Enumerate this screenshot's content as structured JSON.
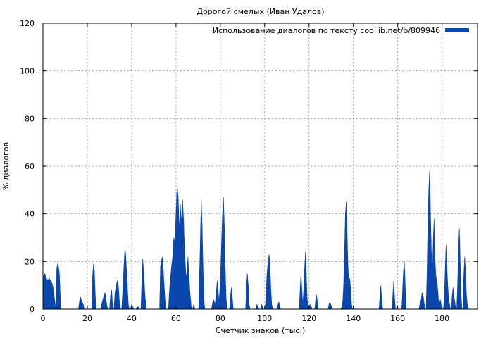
{
  "chart_data": {
    "type": "area",
    "title": "Дорогой смелых (Иван Удалов)",
    "xlabel": "Счетчик знаков (тыс.)",
    "ylabel": "% диалогов",
    "xlim": [
      0,
      196
    ],
    "ylim": [
      0,
      120
    ],
    "xticks": [
      0,
      20,
      40,
      60,
      80,
      100,
      120,
      140,
      160,
      180
    ],
    "yticks": [
      0,
      20,
      40,
      60,
      80,
      100,
      120
    ],
    "grid": true,
    "legend_position": "top-right",
    "colors": {
      "series": "#0a47ad",
      "grid": "#a0a0a0",
      "axis": "#000000"
    },
    "series": [
      {
        "name": "Использование диалогов по тексту coollib.net/b/809946",
        "points": [
          [
            0,
            0
          ],
          [
            0.3,
            14
          ],
          [
            0.8,
            15
          ],
          [
            1.5,
            13
          ],
          [
            2.2,
            12
          ],
          [
            2.8,
            13
          ],
          [
            3.4,
            12
          ],
          [
            4,
            11
          ],
          [
            4.6,
            9
          ],
          [
            5,
            6
          ],
          [
            5.4,
            3
          ],
          [
            5.8,
            0
          ],
          [
            6,
            0
          ],
          [
            6.2,
            17
          ],
          [
            6.6,
            19
          ],
          [
            7,
            18
          ],
          [
            7.4,
            15
          ],
          [
            7.8,
            6
          ],
          [
            8,
            0
          ],
          [
            16,
            0
          ],
          [
            16.6,
            4
          ],
          [
            17,
            5
          ],
          [
            17.6,
            3
          ],
          [
            18.2,
            2
          ],
          [
            18.6,
            0
          ],
          [
            22,
            0
          ],
          [
            22.4,
            14
          ],
          [
            22.8,
            19
          ],
          [
            23.2,
            16
          ],
          [
            23.6,
            6
          ],
          [
            24,
            0
          ],
          [
            26,
            0
          ],
          [
            27,
            4
          ],
          [
            28,
            7
          ],
          [
            28.6,
            3
          ],
          [
            29.2,
            0
          ],
          [
            30,
            0
          ],
          [
            30.5,
            6
          ],
          [
            31,
            8
          ],
          [
            31.5,
            0
          ],
          [
            32,
            0
          ],
          [
            32.5,
            7
          ],
          [
            33.5,
            12
          ],
          [
            34,
            10
          ],
          [
            34.5,
            3
          ],
          [
            35,
            0
          ],
          [
            35.5,
            0
          ],
          [
            36,
            8
          ],
          [
            36.5,
            18
          ],
          [
            37,
            26
          ],
          [
            37.4,
            22
          ],
          [
            38,
            11
          ],
          [
            38.5,
            2
          ],
          [
            39,
            0
          ],
          [
            39.5,
            0
          ],
          [
            40,
            2
          ],
          [
            40.5,
            1
          ],
          [
            41,
            0
          ],
          [
            42,
            0
          ],
          [
            42.5,
            1
          ],
          [
            43,
            1
          ],
          [
            43.5,
            0
          ],
          [
            44.2,
            0
          ],
          [
            44.6,
            12
          ],
          [
            45,
            21
          ],
          [
            45.4,
            16
          ],
          [
            46,
            6
          ],
          [
            46.6,
            0
          ],
          [
            52.6,
            0
          ],
          [
            53,
            18
          ],
          [
            53.6,
            21
          ],
          [
            54,
            22
          ],
          [
            54.4,
            14
          ],
          [
            55,
            5
          ],
          [
            55.4,
            0
          ],
          [
            56.6,
            0
          ],
          [
            57,
            7
          ],
          [
            57.6,
            14
          ],
          [
            58,
            18
          ],
          [
            58.5,
            22
          ],
          [
            59,
            30
          ],
          [
            59.5,
            28
          ],
          [
            60,
            40
          ],
          [
            60.5,
            52
          ],
          [
            61,
            47
          ],
          [
            61.5,
            33
          ],
          [
            62,
            44
          ],
          [
            62.4,
            36
          ],
          [
            63,
            46
          ],
          [
            63.4,
            38
          ],
          [
            64,
            22
          ],
          [
            64.6,
            13
          ],
          [
            65,
            16
          ],
          [
            65.4,
            22
          ],
          [
            65.8,
            14
          ],
          [
            66.4,
            6
          ],
          [
            67,
            0
          ],
          [
            67.5,
            0
          ],
          [
            68,
            2
          ],
          [
            68.5,
            0
          ],
          [
            70.2,
            0
          ],
          [
            70.6,
            14
          ],
          [
            71,
            30
          ],
          [
            71.4,
            46
          ],
          [
            71.8,
            35
          ],
          [
            72.2,
            18
          ],
          [
            72.6,
            4
          ],
          [
            73,
            0
          ],
          [
            76,
            0
          ],
          [
            76.6,
            3
          ],
          [
            77,
            4
          ],
          [
            77.6,
            2
          ],
          [
            78,
            5
          ],
          [
            78.6,
            12
          ],
          [
            79,
            8
          ],
          [
            79.4,
            3
          ],
          [
            80,
            12
          ],
          [
            80.6,
            30
          ],
          [
            81,
            40
          ],
          [
            81.4,
            47
          ],
          [
            81.8,
            36
          ],
          [
            82.2,
            18
          ],
          [
            82.6,
            5
          ],
          [
            83,
            0
          ],
          [
            84.2,
            0
          ],
          [
            84.6,
            6
          ],
          [
            85,
            9
          ],
          [
            85.4,
            5
          ],
          [
            85.8,
            0
          ],
          [
            91.4,
            0
          ],
          [
            91.8,
            10
          ],
          [
            92.2,
            15
          ],
          [
            92.6,
            10
          ],
          [
            93,
            2
          ],
          [
            93.4,
            0
          ],
          [
            96,
            0
          ],
          [
            96.5,
            2
          ],
          [
            97,
            1
          ],
          [
            97.5,
            0
          ],
          [
            98.2,
            0
          ],
          [
            98.6,
            2
          ],
          [
            99,
            1
          ],
          [
            99.4,
            0
          ],
          [
            100.2,
            0
          ],
          [
            100.6,
            6
          ],
          [
            101,
            14
          ],
          [
            101.5,
            20
          ],
          [
            102,
            23
          ],
          [
            102.4,
            18
          ],
          [
            102.8,
            8
          ],
          [
            103.2,
            2
          ],
          [
            103.6,
            0
          ],
          [
            105.6,
            0
          ],
          [
            106,
            2
          ],
          [
            106.4,
            3
          ],
          [
            106.8,
            1
          ],
          [
            107.2,
            0
          ],
          [
            115.6,
            0
          ],
          [
            116,
            9
          ],
          [
            116.4,
            15
          ],
          [
            116.8,
            8
          ],
          [
            117.2,
            2
          ],
          [
            117.6,
            8
          ],
          [
            118,
            17
          ],
          [
            118.4,
            24
          ],
          [
            118.8,
            14
          ],
          [
            119.2,
            4
          ],
          [
            119.6,
            2
          ],
          [
            120,
            1
          ],
          [
            120.4,
            2
          ],
          [
            121,
            1
          ],
          [
            121.4,
            0
          ],
          [
            122.6,
            0
          ],
          [
            123,
            4
          ],
          [
            123.4,
            6
          ],
          [
            123.8,
            3
          ],
          [
            124.2,
            0
          ],
          [
            128.6,
            0
          ],
          [
            129,
            2
          ],
          [
            129.4,
            3
          ],
          [
            129.8,
            2
          ],
          [
            130.2,
            1
          ],
          [
            130.6,
            0
          ],
          [
            134.4,
            0
          ],
          [
            134.8,
            1
          ],
          [
            135.2,
            3
          ],
          [
            135.6,
            10
          ],
          [
            136,
            24
          ],
          [
            136.4,
            40
          ],
          [
            136.8,
            45
          ],
          [
            137.2,
            31
          ],
          [
            137.6,
            18
          ],
          [
            138,
            10
          ],
          [
            138.4,
            13
          ],
          [
            138.8,
            8
          ],
          [
            139.2,
            2
          ],
          [
            139.6,
            0
          ],
          [
            151.6,
            0
          ],
          [
            152,
            6
          ],
          [
            152.4,
            10
          ],
          [
            152.8,
            4
          ],
          [
            153.2,
            0
          ],
          [
            157.4,
            0
          ],
          [
            157.8,
            6
          ],
          [
            158.2,
            12
          ],
          [
            158.6,
            5
          ],
          [
            159,
            0
          ],
          [
            161.8,
            0
          ],
          [
            162.2,
            8
          ],
          [
            162.6,
            16
          ],
          [
            163,
            20
          ],
          [
            163.4,
            10
          ],
          [
            163.8,
            0
          ],
          [
            169.6,
            0
          ],
          [
            170,
            2
          ],
          [
            170.6,
            4
          ],
          [
            171,
            7
          ],
          [
            171.6,
            5
          ],
          [
            172,
            2
          ],
          [
            172.4,
            0
          ],
          [
            172.8,
            0
          ],
          [
            173.2,
            14
          ],
          [
            173.6,
            35
          ],
          [
            174,
            50
          ],
          [
            174.4,
            58
          ],
          [
            174.8,
            40
          ],
          [
            175.2,
            24
          ],
          [
            175.6,
            12
          ],
          [
            176,
            28
          ],
          [
            176.4,
            38
          ],
          [
            176.8,
            22
          ],
          [
            177.2,
            14
          ],
          [
            177.6,
            12
          ],
          [
            178,
            9
          ],
          [
            178.4,
            4
          ],
          [
            178.8,
            2
          ],
          [
            179.2,
            4
          ],
          [
            179.6,
            2
          ],
          [
            180,
            0
          ],
          [
            180.6,
            0
          ],
          [
            181,
            4
          ],
          [
            181.4,
            16
          ],
          [
            181.8,
            27
          ],
          [
            182.2,
            18
          ],
          [
            182.6,
            10
          ],
          [
            183,
            4
          ],
          [
            183.4,
            2
          ],
          [
            183.8,
            0
          ],
          [
            184.2,
            0
          ],
          [
            184.6,
            6
          ],
          [
            185,
            9
          ],
          [
            185.4,
            5
          ],
          [
            185.8,
            3
          ],
          [
            186.2,
            0
          ],
          [
            186.6,
            0
          ],
          [
            187,
            10
          ],
          [
            187.4,
            26
          ],
          [
            187.8,
            34
          ],
          [
            188.2,
            20
          ],
          [
            188.6,
            6
          ],
          [
            189,
            0
          ],
          [
            189.4,
            0
          ],
          [
            189.8,
            14
          ],
          [
            190.2,
            22
          ],
          [
            190.6,
            16
          ],
          [
            191,
            6
          ],
          [
            191.4,
            2
          ],
          [
            191.8,
            0
          ]
        ]
      }
    ]
  }
}
